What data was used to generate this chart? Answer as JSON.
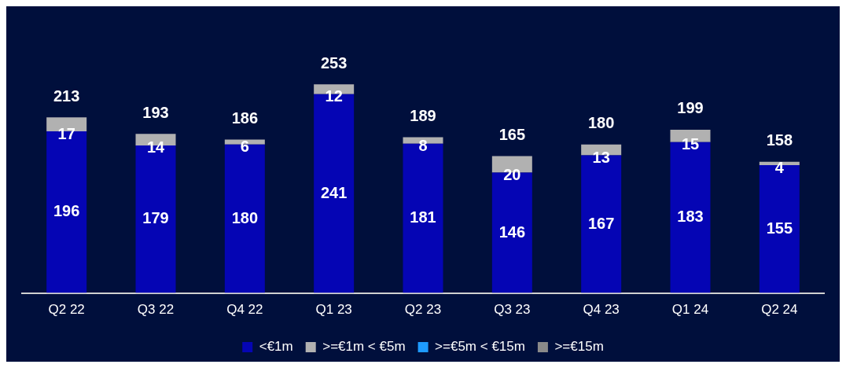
{
  "chart_data": {
    "type": "bar",
    "stacked": true,
    "data_labels": true,
    "grid": false,
    "legend": "bottom",
    "categories": [
      "Q2 22",
      "Q3 22",
      "Q4 22",
      "Q1 23",
      "Q2 23",
      "Q3 23",
      "Q4 23",
      "Q1 24",
      "Q2 24"
    ],
    "series": [
      {
        "name": "<€1m",
        "color": "#0505b4",
        "values": [
          196,
          179,
          180,
          241,
          181,
          146,
          167,
          183,
          155
        ]
      },
      {
        "name": ">=€1m < €5m",
        "color": "#b1b1b1",
        "values": [
          17,
          14,
          6,
          12,
          8,
          20,
          13,
          15,
          4
        ]
      },
      {
        "name": ">=€5m < €15m",
        "color": "#1e9bff",
        "values": [
          null,
          null,
          null,
          null,
          null,
          null,
          null,
          null,
          null
        ]
      },
      {
        "name": ">=€15m",
        "color": "#8a8a8a",
        "values": [
          null,
          null,
          null,
          null,
          null,
          null,
          null,
          null,
          null
        ]
      }
    ],
    "totals": [
      "213",
      "193",
      "186",
      "253",
      "189",
      "165",
      "180",
      "199",
      "158"
    ]
  }
}
